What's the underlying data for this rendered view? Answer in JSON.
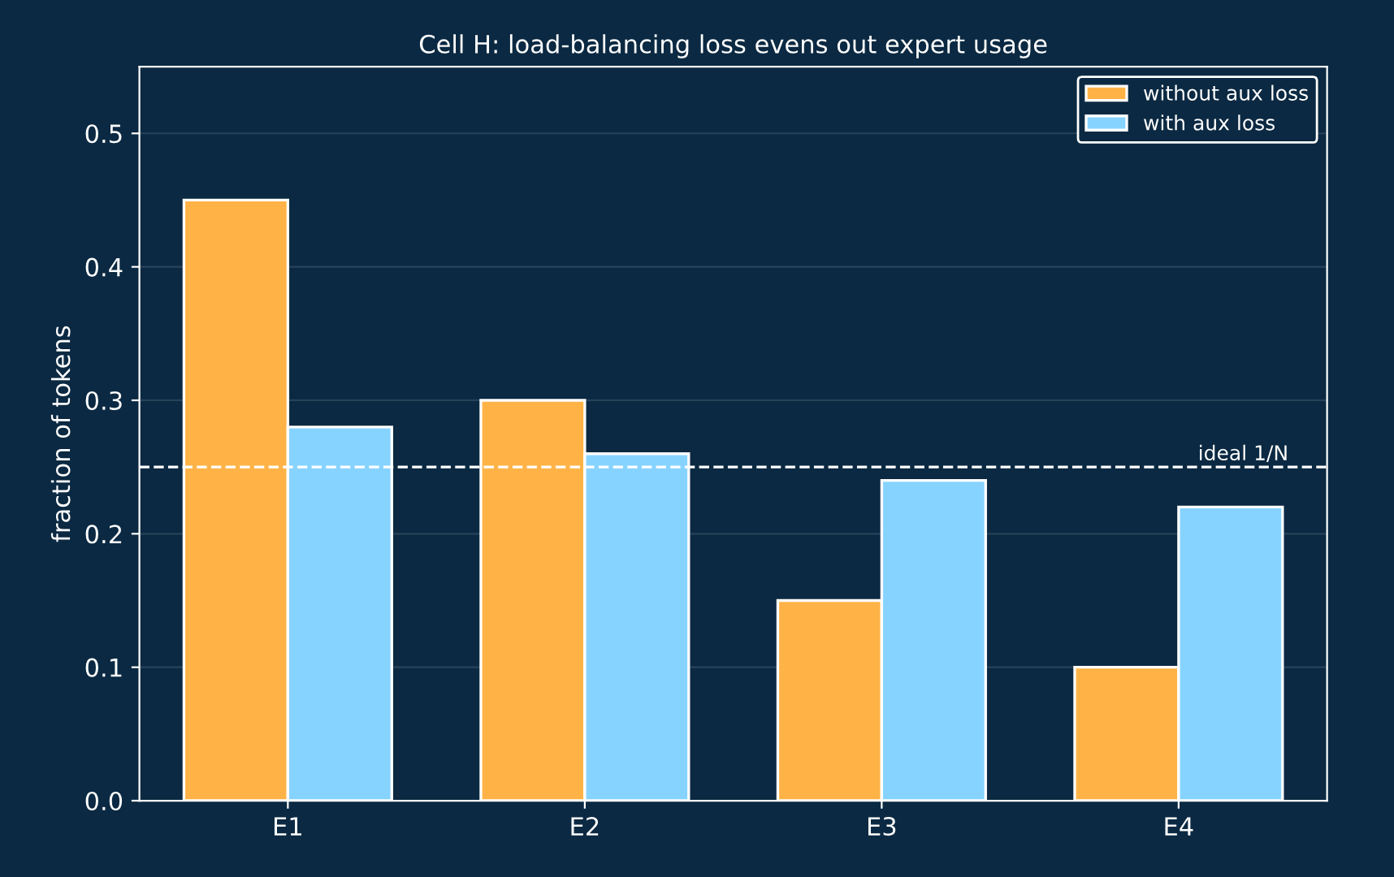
{
  "chart_data": {
    "type": "bar",
    "title": "Cell H: load-balancing loss evens out expert usage",
    "ylabel": "fraction of tokens",
    "categories": [
      "E1",
      "E2",
      "E3",
      "E4"
    ],
    "series": [
      {
        "name": "without aux loss",
        "color": "#ffb347",
        "values": [
          0.45,
          0.3,
          0.15,
          0.1
        ]
      },
      {
        "name": "with aux loss",
        "color": "#87d3ff",
        "values": [
          0.28,
          0.26,
          0.24,
          0.22
        ]
      }
    ],
    "ylim": [
      0,
      0.55
    ],
    "yticks": [
      {
        "value": 0,
        "label": "0.0"
      },
      0.1,
      0.2,
      0.3,
      0.4,
      0.5
    ],
    "ref_lines": [
      {
        "axis": "y",
        "value": 0.25,
        "label": "ideal 1/N",
        "color": "#ffffff",
        "line_style": "dashed"
      }
    ],
    "grid": "y",
    "legend": "top right"
  }
}
